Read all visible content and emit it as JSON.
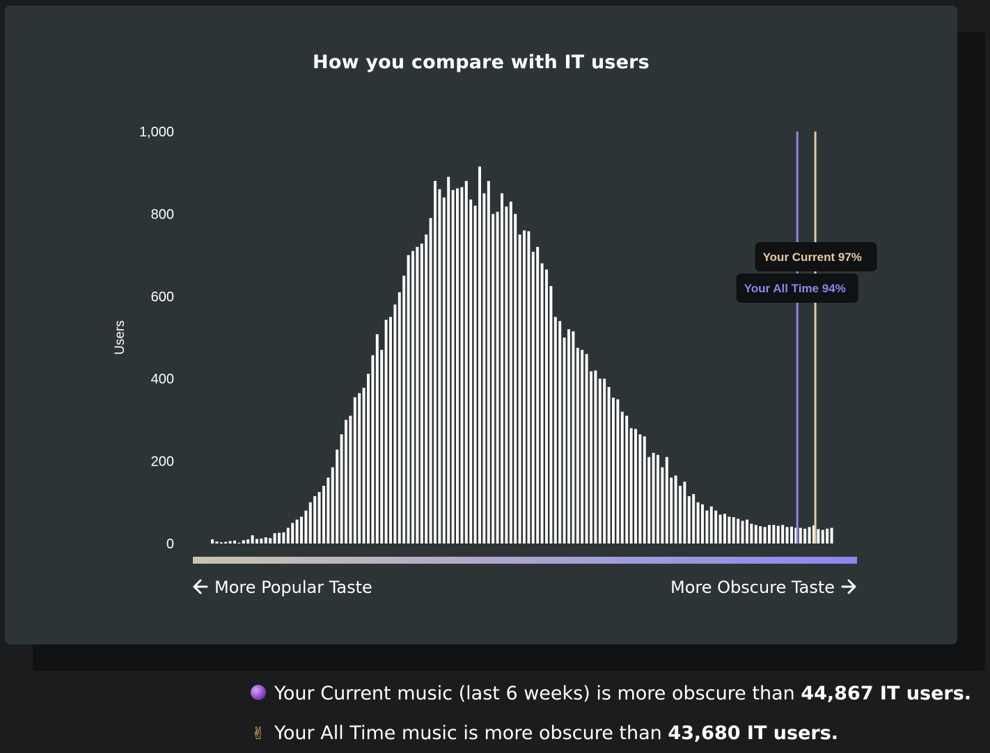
{
  "chart_data": {
    "type": "bar",
    "title": "How you compare with IT users",
    "ylabel": "Users",
    "ylim": [
      0,
      1000
    ],
    "yticks": [
      "0",
      "200",
      "400",
      "600",
      "800",
      "1,000"
    ],
    "ytick_values": [
      0,
      200,
      400,
      600,
      800,
      1000
    ],
    "xlabel_left": "More Popular Taste",
    "xlabel_right": "More Obscure Taste",
    "grid": false,
    "bar_color": "#ffffff",
    "values": [
      10,
      5,
      3,
      4,
      6,
      7,
      2,
      8,
      10,
      20,
      11,
      12,
      15,
      13,
      25,
      26,
      27,
      38,
      50,
      58,
      65,
      80,
      100,
      115,
      125,
      140,
      160,
      185,
      228,
      265,
      300,
      310,
      355,
      365,
      378,
      412,
      457,
      508,
      470,
      543,
      550,
      580,
      610,
      650,
      700,
      710,
      720,
      728,
      750,
      790,
      880,
      860,
      840,
      890,
      858,
      862,
      865,
      880,
      835,
      820,
      915,
      850,
      880,
      800,
      805,
      850,
      818,
      830,
      800,
      750,
      760,
      758,
      708,
      720,
      680,
      665,
      625,
      550,
      540,
      500,
      520,
      515,
      475,
      470,
      460,
      418,
      420,
      400,
      400,
      380,
      354,
      350,
      320,
      310,
      280,
      278,
      265,
      260,
      210,
      220,
      215,
      185,
      210,
      160,
      165,
      140,
      150,
      115,
      120,
      100,
      95,
      80,
      90,
      80,
      70,
      72,
      65,
      64,
      60,
      55,
      58,
      48,
      45,
      42,
      40,
      45,
      45,
      43,
      45,
      40,
      41,
      38,
      38,
      36,
      40,
      44,
      35,
      33,
      36,
      38
    ],
    "markers": [
      {
        "label": "Your All Time 94%",
        "percentile": 94,
        "color": "#8e86ee"
      },
      {
        "label": "Your Current 97%",
        "percentile": 97,
        "color": "#e8c9a4"
      }
    ],
    "gradient_colors": [
      "#c9c3b0",
      "#8e86ee"
    ]
  },
  "footer": {
    "current_text": "Your Current music (last 6 weeks) is more obscure than ",
    "current_count": "44,867 IT users.",
    "alltime_text": "Your All Time music is more obscure than ",
    "alltime_count": "43,680 IT users."
  },
  "icons": [
    "crystal-ball-icon",
    "victory-hand-icon",
    "arrow-left-icon",
    "arrow-right-icon"
  ]
}
